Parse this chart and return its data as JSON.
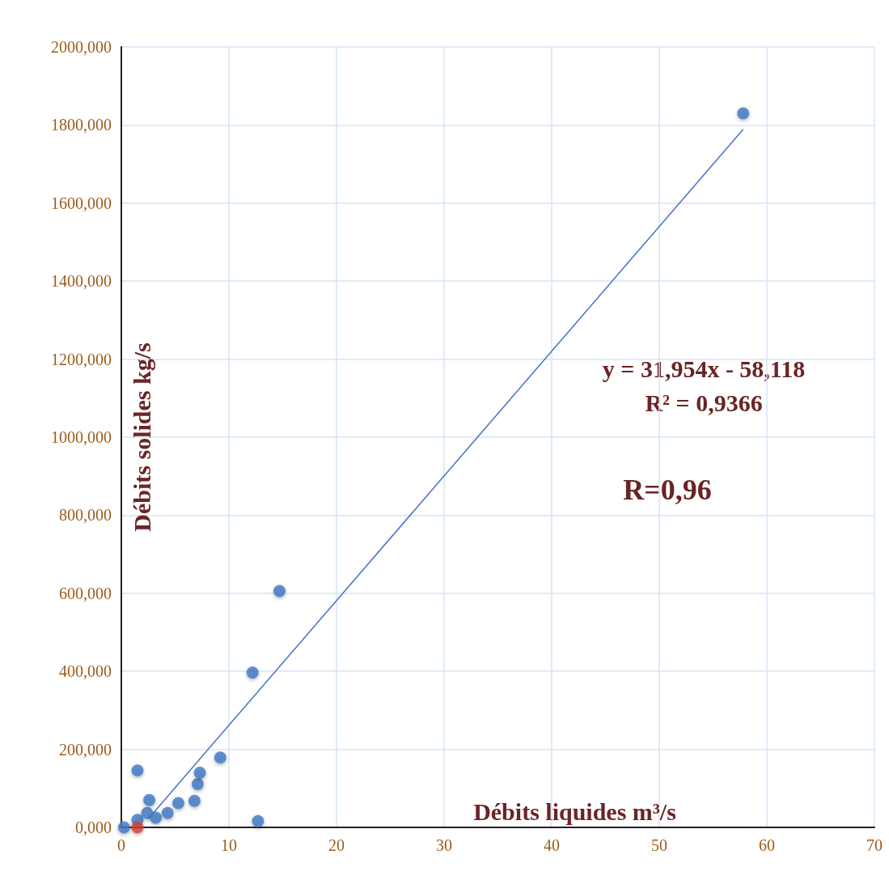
{
  "chart_data": {
    "type": "scatter",
    "xlabel": "Débits liquides m³/s",
    "ylabel": "Débits solides kg/s",
    "annotations": [
      "y = 31,954x - 58,118",
      "R² = 0,9366",
      "R=0,96"
    ],
    "series": [
      {
        "color": "#3d78c4",
        "x": [
          0.25,
          1.0,
          1.5,
          1.5,
          2.4,
          2.6,
          3.2,
          4.3,
          5.3,
          6.8,
          7.1,
          7.3,
          9.2,
          12.2,
          12.7,
          14.7,
          57.8
        ],
        "values": [
          0,
          null,
          19,
          146,
          37,
          70,
          25,
          37,
          62,
          68,
          111,
          140,
          179,
          397,
          16,
          606,
          1830
        ]
      },
      {
        "color": "#d0413a",
        "x": [
          1.5
        ],
        "values": [
          0
        ]
      },
      {
        "type": "line",
        "color": "#4472c4",
        "marker": "none",
        "x": [
          2.5,
          57.8
        ],
        "values": [
          22,
          1789
        ]
      }
    ],
    "xlim": [
      0,
      70
    ],
    "xticks": [
      0,
      10,
      20,
      30,
      40,
      50,
      60,
      70
    ],
    "ylim": [
      0,
      2000
    ],
    "yticks": [
      {
        "value": 0,
        "label": "0,000"
      },
      {
        "value": 200,
        "label": "200,000"
      },
      {
        "value": 400,
        "label": "400,000"
      },
      {
        "value": 600,
        "label": "600,000"
      },
      {
        "value": 800,
        "label": "800,000"
      },
      {
        "value": 1000,
        "label": "1000,000"
      },
      {
        "value": 1200,
        "label": "1200,000"
      },
      {
        "value": 1400,
        "label": "1400,000"
      },
      {
        "value": 1600,
        "label": "1600,000"
      },
      {
        "value": 1800,
        "label": "1800,000"
      },
      {
        "value": 2000,
        "label": "2000,000"
      }
    ],
    "grid": true,
    "marker": "circle"
  }
}
